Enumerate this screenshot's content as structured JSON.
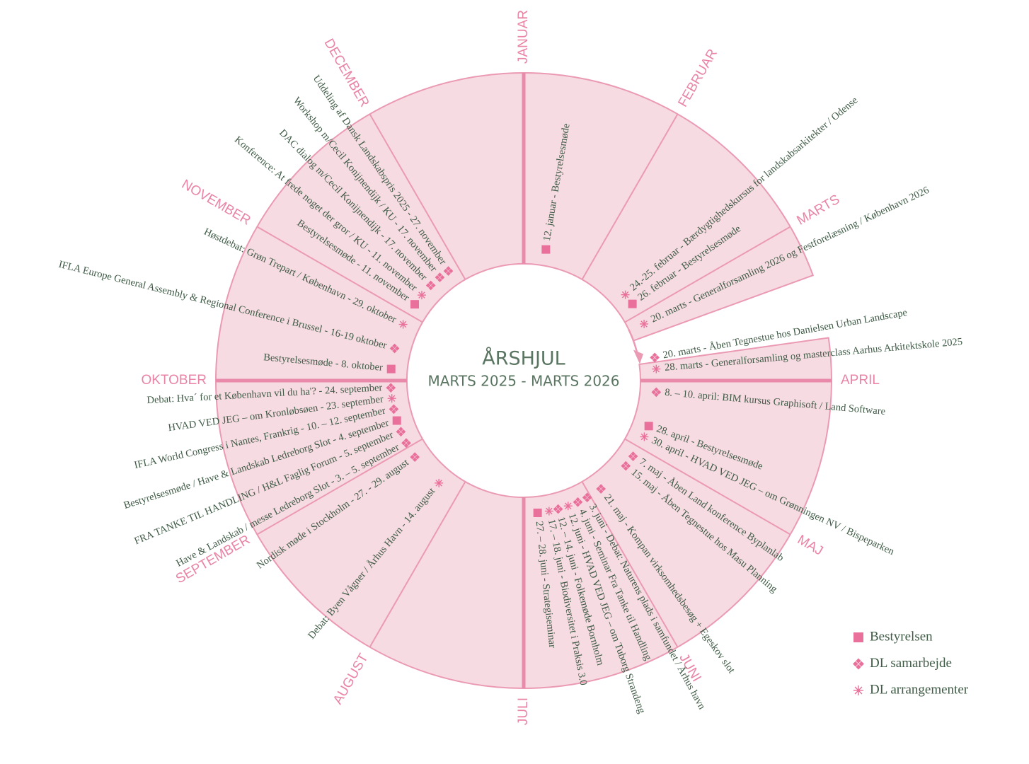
{
  "header": {
    "title": "ÅRSHJUL",
    "subtitle": "MARTS 2025 - MARTS 2026"
  },
  "months": [
    "JANUAR",
    "FEBRUAR",
    "MARTS",
    "APRIL",
    "MAJ",
    "JUNI",
    "JULI",
    "AUGUST",
    "SEPTEMBER",
    "OKTOBER",
    "NOVEMBER",
    "DECEMBER"
  ],
  "events": [
    {
      "text": "12. januar - Bestyrelsesmøde",
      "marker": "square"
    },
    {
      "text": "24.-25. februar - Bærdygtighedskursus for landskabsarkitekter / Odense",
      "marker": "asterisk"
    },
    {
      "text": "26. februar - Bestyrelsesmøde",
      "marker": "square"
    },
    {
      "text": "20. marts - Generalforsamling 2026 og Festforelæsning / København 2026",
      "marker": "asterisk"
    },
    {
      "text": "20. marts - Åben Tegnestue hos Danielsen Urban Landscape",
      "marker": "diamond"
    },
    {
      "text": "28. marts - Generalforsamling og masterclass Aarhus Arkitektskole 2025",
      "marker": "asterisk"
    },
    {
      "text": "8. – 10. april: BIM kursus Graphisoft / Land Software",
      "marker": "diamond"
    },
    {
      "text": "28. april - Bestyrelsesmøde",
      "marker": "square"
    },
    {
      "text": "30. april - HVAD VED JEG – om Grønningen NV / Bispeparken",
      "marker": "asterisk"
    },
    {
      "text": "7. maj - Åben Land konference Byplanlab",
      "marker": "diamond"
    },
    {
      "text": "15. maj - Åben Tegnestue hos Masu Planning",
      "marker": "diamond"
    },
    {
      "text": "21. maj - Kompan virksomhedsbesøg + Egeskov slot",
      "marker": "diamond"
    },
    {
      "text": "3. juni - Debat: Naturens plads i samfundet / Århus havn",
      "marker": "diamond"
    },
    {
      "text": "4. juni - Seminar Fra Tanke til Handling",
      "marker": "diamond"
    },
    {
      "text": "12. juni - HVAD VED JEG – om Tuborg Strandeng",
      "marker": "asterisk"
    },
    {
      "text": "12. – 14. juni - Folkemøde Bornholm",
      "marker": "diamond"
    },
    {
      "text": "17. – 18. juni - Biodiversitet i Praksis 3.0",
      "marker": "asterisk"
    },
    {
      "text": "27. – 28. juni - Strategiseminar",
      "marker": "square"
    },
    {
      "text": "Debat: Byen Vågner / Århus Havn - 14. august",
      "marker": "asterisk"
    },
    {
      "text": "Nordisk møde i Stockholm - 27. - 29. august",
      "marker": "diamond"
    },
    {
      "text": "Have & Landskab / messe Ledreborg Slot - 3. – 5. september",
      "marker": "diamond"
    },
    {
      "text": "FRA TANKE TIL HANDLING / H&L Faglig Forum - 5. september",
      "marker": "diamond"
    },
    {
      "text": "Bestyrelsesmøde / Have & Landskab Ledreborg Slot - 4. september",
      "marker": "square"
    },
    {
      "text": "IFLA World Congress i Nantes, Frankrig - 10. – 12. september",
      "marker": "diamond"
    },
    {
      "text": "HVAD VED JEG – om Kronløbsøen - 23. september",
      "marker": "asterisk"
    },
    {
      "text": "Debat: Hva´ for et København vil du ha'? - 24. september",
      "marker": "diamond"
    },
    {
      "text": "Bestyrelsesmøde - 8. oktober",
      "marker": "square"
    },
    {
      "text": "IFLA Europe General Assembly & Regional Conference i Brussel - 16-19 oktober",
      "marker": "diamond"
    },
    {
      "text": "Høstdebat: Grøn Trepart / København - 29. oktober",
      "marker": "asterisk"
    },
    {
      "text": "Bestyrelsesmøde - 11. november",
      "marker": "square"
    },
    {
      "text": "Konference: At frede noget der gror / KU - 11. november",
      "marker": "asterisk"
    },
    {
      "text": "DAC dialog m/Cecil Konijnendijk - 17. november",
      "marker": "diamond"
    },
    {
      "text": "Workshop m/Cecil Konijnendijk / KU - 17. november",
      "marker": "diamond"
    },
    {
      "text": "Uddeling af Dansk Landskabspris 2025 - 27. november",
      "marker": "diamond"
    }
  ],
  "legend": [
    {
      "text": "Bestyrelsen",
      "marker": "square"
    },
    {
      "text": "DL samarbejde",
      "marker": "diamond"
    },
    {
      "text": "DL arrangementer",
      "marker": "asterisk"
    }
  ]
}
